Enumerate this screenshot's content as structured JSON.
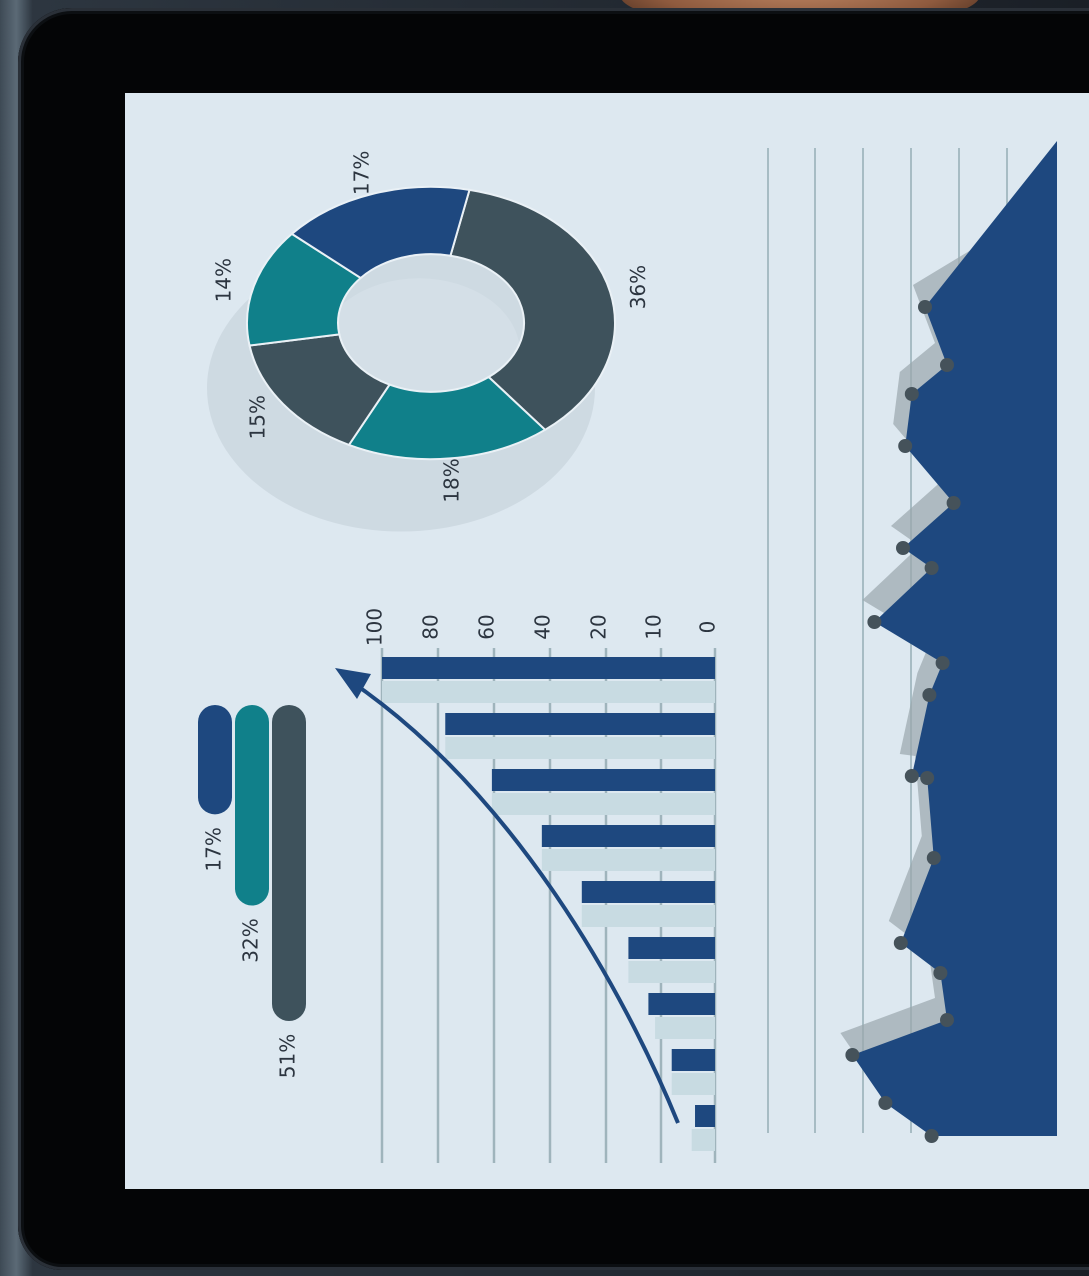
{
  "colors": {
    "screen_bg": "#dde8f0",
    "navy": "#1e487f",
    "teal": "#10808a",
    "slate": "#3e525c",
    "light_bar": "#c8dbe2",
    "shadow": "#9aa6ad",
    "grid": "#9fb4bc"
  },
  "icons": {
    "trend_arrow": "curved-arrow-icon"
  },
  "chart_data": [
    {
      "type": "donut",
      "labels": [
        "36%",
        "18%",
        "15%",
        "14%",
        "17%"
      ],
      "values": [
        36,
        18,
        15,
        14,
        17
      ],
      "colors": [
        "#3e525c",
        "#10808a",
        "#3e525c",
        "#10808a",
        "#1e487f"
      ]
    },
    {
      "type": "bar",
      "orientation": "horizontal",
      "labels": [
        "17%",
        "32%",
        "51%"
      ],
      "values": [
        17,
        32,
        51
      ],
      "colors": [
        "#1e487f",
        "#10808a",
        "#3e525c"
      ]
    },
    {
      "type": "bar",
      "axis_ticks": [
        "100",
        "80",
        "60",
        "40",
        "20",
        "10",
        "0"
      ],
      "values": [
        100,
        81,
        67,
        52,
        40,
        26,
        20,
        13,
        6
      ],
      "background_values": [
        100,
        81,
        67,
        52,
        40,
        26,
        18,
        13,
        7
      ],
      "trend_arrow": true
    },
    {
      "type": "area",
      "values": [
        57,
        78,
        93,
        50,
        53,
        71,
        56,
        59,
        66,
        58,
        52,
        83,
        57,
        70,
        47,
        69,
        66,
        50,
        60
      ]
    }
  ]
}
